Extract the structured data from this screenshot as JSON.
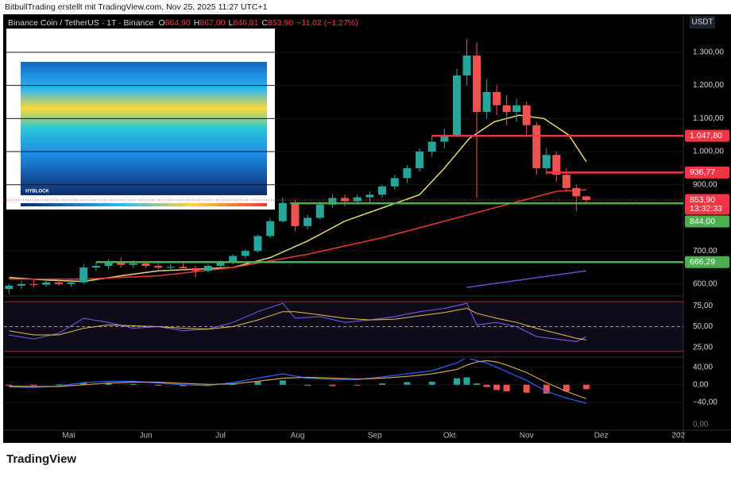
{
  "header": {
    "credit": "BitbullTrading erstellt mit TradingView.com, Nov 25, 2025 11:27 UTC+1"
  },
  "footer": {
    "brand": "TradingView"
  },
  "chart_data": [
    {
      "type": "candlestick",
      "symbol": "Binance Coin / TetherUS · 1T · Binance",
      "ohlc": [
        {
          "key": "O",
          "value": "864,90"
        },
        {
          "key": "H",
          "value": "867,00"
        },
        {
          "key": "L",
          "value": "846,81"
        },
        {
          "key": "C",
          "value": "853,90"
        }
      ],
      "change": "−11,02 (−1,27%)",
      "currency": "USDT",
      "inset_label": "HYBLOCK",
      "up_color": "#26a69a",
      "down_color": "#ef5350",
      "x": [
        97,
        102,
        107,
        112,
        117,
        122,
        127,
        132,
        137,
        142,
        147,
        152,
        157,
        162,
        167,
        172,
        177,
        182,
        187,
        192,
        197,
        202,
        207,
        212,
        217,
        222,
        227,
        232,
        237,
        242,
        247,
        252,
        257,
        262,
        267,
        272,
        277,
        281,
        285,
        289,
        293,
        297,
        301,
        305,
        309,
        313,
        317,
        321,
        325,
        329
      ],
      "open": [
        585,
        595,
        600,
        598,
        605,
        600,
        605,
        650,
        655,
        665,
        658,
        662,
        655,
        650,
        652,
        648,
        640,
        655,
        665,
        685,
        700,
        745,
        790,
        845,
        775,
        800,
        840,
        860,
        850,
        862,
        870,
        895,
        920,
        950,
        1000,
        1030,
        1050,
        1230,
        1290,
        1120,
        1180,
        1140,
        1120,
        1140,
        1080,
        950,
        990,
        930,
        890,
        864.9
      ],
      "high": [
        600,
        610,
        612,
        615,
        612,
        615,
        660,
        665,
        675,
        680,
        672,
        670,
        668,
        662,
        665,
        655,
        660,
        672,
        690,
        705,
        750,
        800,
        860,
        855,
        810,
        850,
        870,
        870,
        870,
        880,
        900,
        930,
        960,
        1010,
        1050,
        1070,
        1250,
        1340,
        1330,
        1220,
        1200,
        1170,
        1160,
        1150,
        1090,
        1010,
        1000,
        950,
        900,
        867
      ],
      "low": [
        570,
        585,
        590,
        592,
        595,
        592,
        600,
        640,
        645,
        650,
        648,
        648,
        645,
        640,
        642,
        620,
        635,
        648,
        660,
        678,
        695,
        740,
        785,
        760,
        765,
        795,
        830,
        835,
        840,
        845,
        860,
        885,
        905,
        940,
        985,
        1010,
        1045,
        1200,
        860,
        1100,
        1110,
        1080,
        1090,
        1050,
        930,
        930,
        910,
        880,
        820,
        846.81
      ],
      "close": [
        595,
        600,
        598,
        605,
        600,
        605,
        650,
        655,
        665,
        658,
        662,
        655,
        650,
        652,
        648,
        640,
        655,
        665,
        685,
        700,
        745,
        790,
        845,
        775,
        800,
        840,
        860,
        850,
        862,
        870,
        895,
        920,
        950,
        1000,
        1030,
        1050,
        1230,
        1290,
        1120,
        1180,
        1140,
        1120,
        1140,
        1080,
        950,
        990,
        930,
        890,
        865,
        853.9
      ],
      "lines": [
        {
          "color": "#e8d66e",
          "x": [
            97,
            112,
            127,
            142,
            157,
            172,
            187,
            202,
            217,
            232,
            247,
            262,
            272,
            282,
            292,
            302,
            312,
            322,
            329
          ],
          "values": [
            620,
            612,
            608,
            625,
            640,
            645,
            650,
            680,
            730,
            790,
            830,
            870,
            950,
            1040,
            1090,
            1110,
            1100,
            1050,
            970
          ]
        },
        {
          "color": "#e53935",
          "x": [
            97,
            127,
            157,
            187,
            217,
            247,
            277,
            297,
            317,
            329
          ],
          "values": [
            615,
            615,
            625,
            650,
            690,
            740,
            800,
            840,
            880,
            885
          ]
        },
        {
          "color": "#6a4bd6",
          "x": [
            281,
            305,
            329
          ],
          "values": [
            590,
            615,
            640
          ]
        }
      ],
      "levels": [
        {
          "value": 1047.8,
          "label": "1.047,80",
          "color": "#f23645",
          "from_x": 267
        },
        {
          "value": 936.77,
          "label": "936,77",
          "color": "#f23645",
          "from_x": 313
        },
        {
          "value": 844,
          "label": "844,00",
          "color": "#4caf50",
          "from_x": 210
        },
        {
          "value": 666.29,
          "label": "666,29",
          "color": "#4caf50",
          "from_x": 132
        }
      ],
      "current": {
        "value": 853.9,
        "label": "853,90",
        "countdown": "13:32:33",
        "color": "#f23645"
      },
      "xlim": [
        95,
        368
      ],
      "xticks": [
        {
          "value": 121,
          "label": "Mai"
        },
        {
          "value": 152,
          "label": "Jun"
        },
        {
          "value": 182,
          "label": "Jul"
        },
        {
          "value": 213,
          "label": "Aug"
        },
        {
          "value": 244,
          "label": "Sep"
        },
        {
          "value": 274,
          "label": "Okt"
        },
        {
          "value": 305,
          "label": "Nov"
        },
        {
          "value": 335,
          "label": "Dez"
        },
        {
          "value": 366,
          "label": "202"
        }
      ],
      "ylim": [
        571,
        1410
      ],
      "yticks": [
        {
          "value": 600,
          "label": "600,00"
        },
        {
          "value": 700,
          "label": "700,00"
        },
        {
          "value": 900,
          "label": "900,00"
        },
        {
          "value": 1000,
          "label": "1.000,00"
        },
        {
          "value": 1100,
          "label": "1.100,00"
        },
        {
          "value": 1200,
          "label": "1.200,00"
        },
        {
          "value": 1300,
          "label": "1.300,00"
        }
      ],
      "grid": true
    },
    {
      "type": "line",
      "band": [
        20,
        80
      ],
      "midline": 50,
      "series": [
        {
          "color": "#7b61ff",
          "x": [
            97,
            107,
            117,
            127,
            137,
            147,
            157,
            167,
            177,
            187,
            197,
            207,
            212,
            222,
            232,
            242,
            252,
            262,
            272,
            281,
            285,
            293,
            301,
            309,
            317,
            325,
            329
          ],
          "values": [
            40,
            35,
            42,
            60,
            55,
            48,
            50,
            45,
            47,
            55,
            68,
            78,
            60,
            62,
            55,
            58,
            62,
            68,
            72,
            78,
            52,
            55,
            50,
            38,
            35,
            32,
            38
          ]
        },
        {
          "color": "#e0c050",
          "x": [
            97,
            107,
            117,
            127,
            137,
            147,
            157,
            167,
            177,
            187,
            197,
            207,
            212,
            222,
            232,
            242,
            252,
            262,
            272,
            281,
            285,
            293,
            301,
            309,
            317,
            325,
            329
          ],
          "values": [
            45,
            40,
            40,
            48,
            52,
            51,
            50,
            48,
            47,
            50,
            58,
            68,
            68,
            64,
            60,
            58,
            59,
            63,
            67,
            72,
            66,
            60,
            55,
            48,
            42,
            36,
            34
          ]
        }
      ],
      "ylim": [
        18,
        82
      ],
      "yticks": [
        {
          "value": 25,
          "label": "25,00"
        },
        {
          "value": 50,
          "label": "50,00"
        },
        {
          "value": 75,
          "label": "75,00"
        }
      ]
    },
    {
      "type": "macd",
      "x": [
        97,
        107,
        117,
        127,
        137,
        147,
        157,
        167,
        177,
        187,
        197,
        207,
        217,
        227,
        237,
        247,
        257,
        267,
        277,
        281,
        285,
        289,
        293,
        297,
        305,
        313,
        321,
        329
      ],
      "series": [
        {
          "color": "#2962ff",
          "values": [
            -5,
            -6,
            -3,
            5,
            8,
            8,
            4,
            0,
            -2,
            5,
            15,
            25,
            15,
            12,
            12,
            18,
            25,
            32,
            50,
            62,
            55,
            50,
            40,
            30,
            10,
            -15,
            -30,
            -42
          ]
        },
        {
          "color": "#d4a04c",
          "values": [
            -3,
            -4,
            -4,
            0,
            4,
            6,
            6,
            3,
            1,
            2,
            8,
            15,
            17,
            15,
            13,
            15,
            19,
            25,
            35,
            45,
            52,
            55,
            52,
            45,
            28,
            5,
            -15,
            -32
          ]
        }
      ],
      "histogram": {
        "up_color": "#26a69a",
        "down_color": "#ef5350",
        "values": [
          -2,
          -2,
          1,
          5,
          4,
          2,
          -2,
          -3,
          -3,
          3,
          7,
          10,
          -2,
          -3,
          -1,
          3,
          6,
          7,
          15,
          17,
          3,
          -5,
          -12,
          -15,
          -18,
          -20,
          -15,
          -10
        ]
      },
      "bottom_label": "0,00",
      "ylim": [
        -100,
        54
      ],
      "yticks": [
        {
          "value": -40,
          "label": "−40,00"
        },
        {
          "value": 0,
          "label": "0,00"
        },
        {
          "value": 40,
          "label": "40,00"
        }
      ]
    }
  ]
}
